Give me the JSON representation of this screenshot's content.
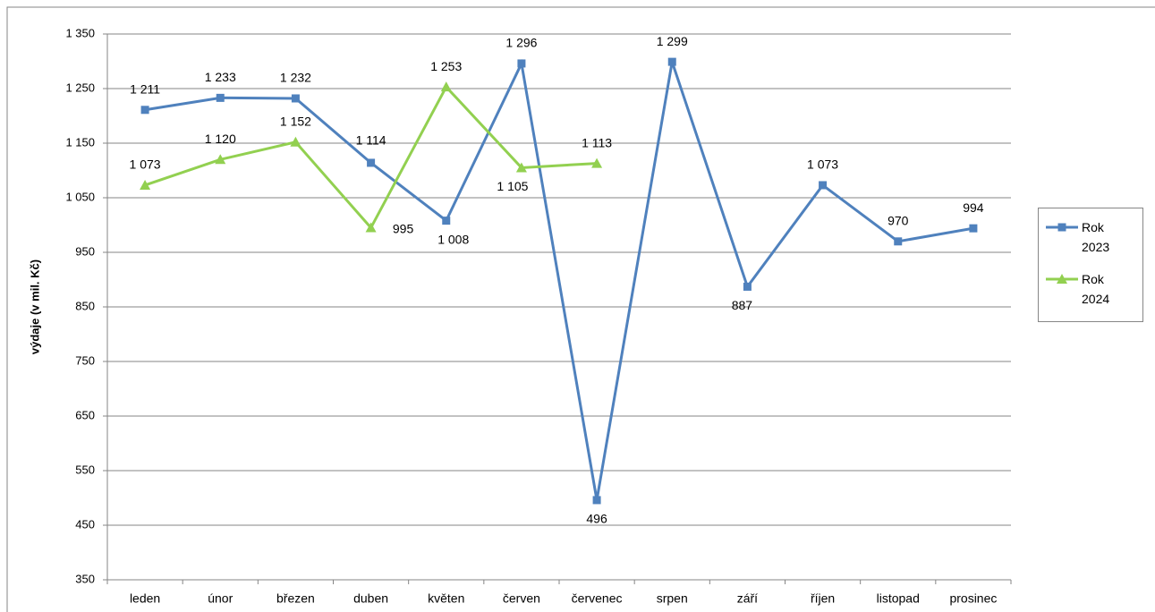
{
  "chart_data": {
    "type": "line",
    "y_label": "výdaje (v mil. Kč)",
    "categories": [
      "leden",
      "únor",
      "březen",
      "duben",
      "květen",
      "červen",
      "červenec",
      "srpen",
      "září",
      "říjen",
      "listopad",
      "prosinec"
    ],
    "series": [
      {
        "name": "Rok 2023",
        "color": "#4f81bd",
        "marker": "square",
        "values": [
          1211,
          1233,
          1232,
          1114,
          1008,
          1296,
          496,
          1299,
          887,
          1073,
          970,
          994
        ],
        "value_labels": [
          "1 211",
          "1 233",
          "1 232",
          "1 114",
          "1 008",
          "1 296",
          "496",
          "1 299",
          "887",
          "1 073",
          "970",
          "994"
        ]
      },
      {
        "name": "Rok 2024",
        "color": "#92d050",
        "marker": "triangle",
        "values": [
          1073,
          1120,
          1152,
          995,
          1253,
          1105,
          1113,
          null,
          null,
          null,
          null,
          null
        ],
        "value_labels": [
          "1 073",
          "1 120",
          "1 152",
          "995",
          "1 253",
          "1 105",
          "1 113",
          null,
          null,
          null,
          null,
          null
        ]
      }
    ],
    "ylim": [
      350,
      1350
    ],
    "yticks": [
      350,
      450,
      550,
      650,
      750,
      850,
      950,
      {
        "value": 1050,
        "label": "1 050"
      },
      {
        "value": 1150,
        "label": "1 150"
      },
      {
        "value": 1250,
        "label": "1 250"
      },
      {
        "value": 1350,
        "label": "1 350"
      }
    ],
    "grid": true,
    "legend": "right"
  }
}
